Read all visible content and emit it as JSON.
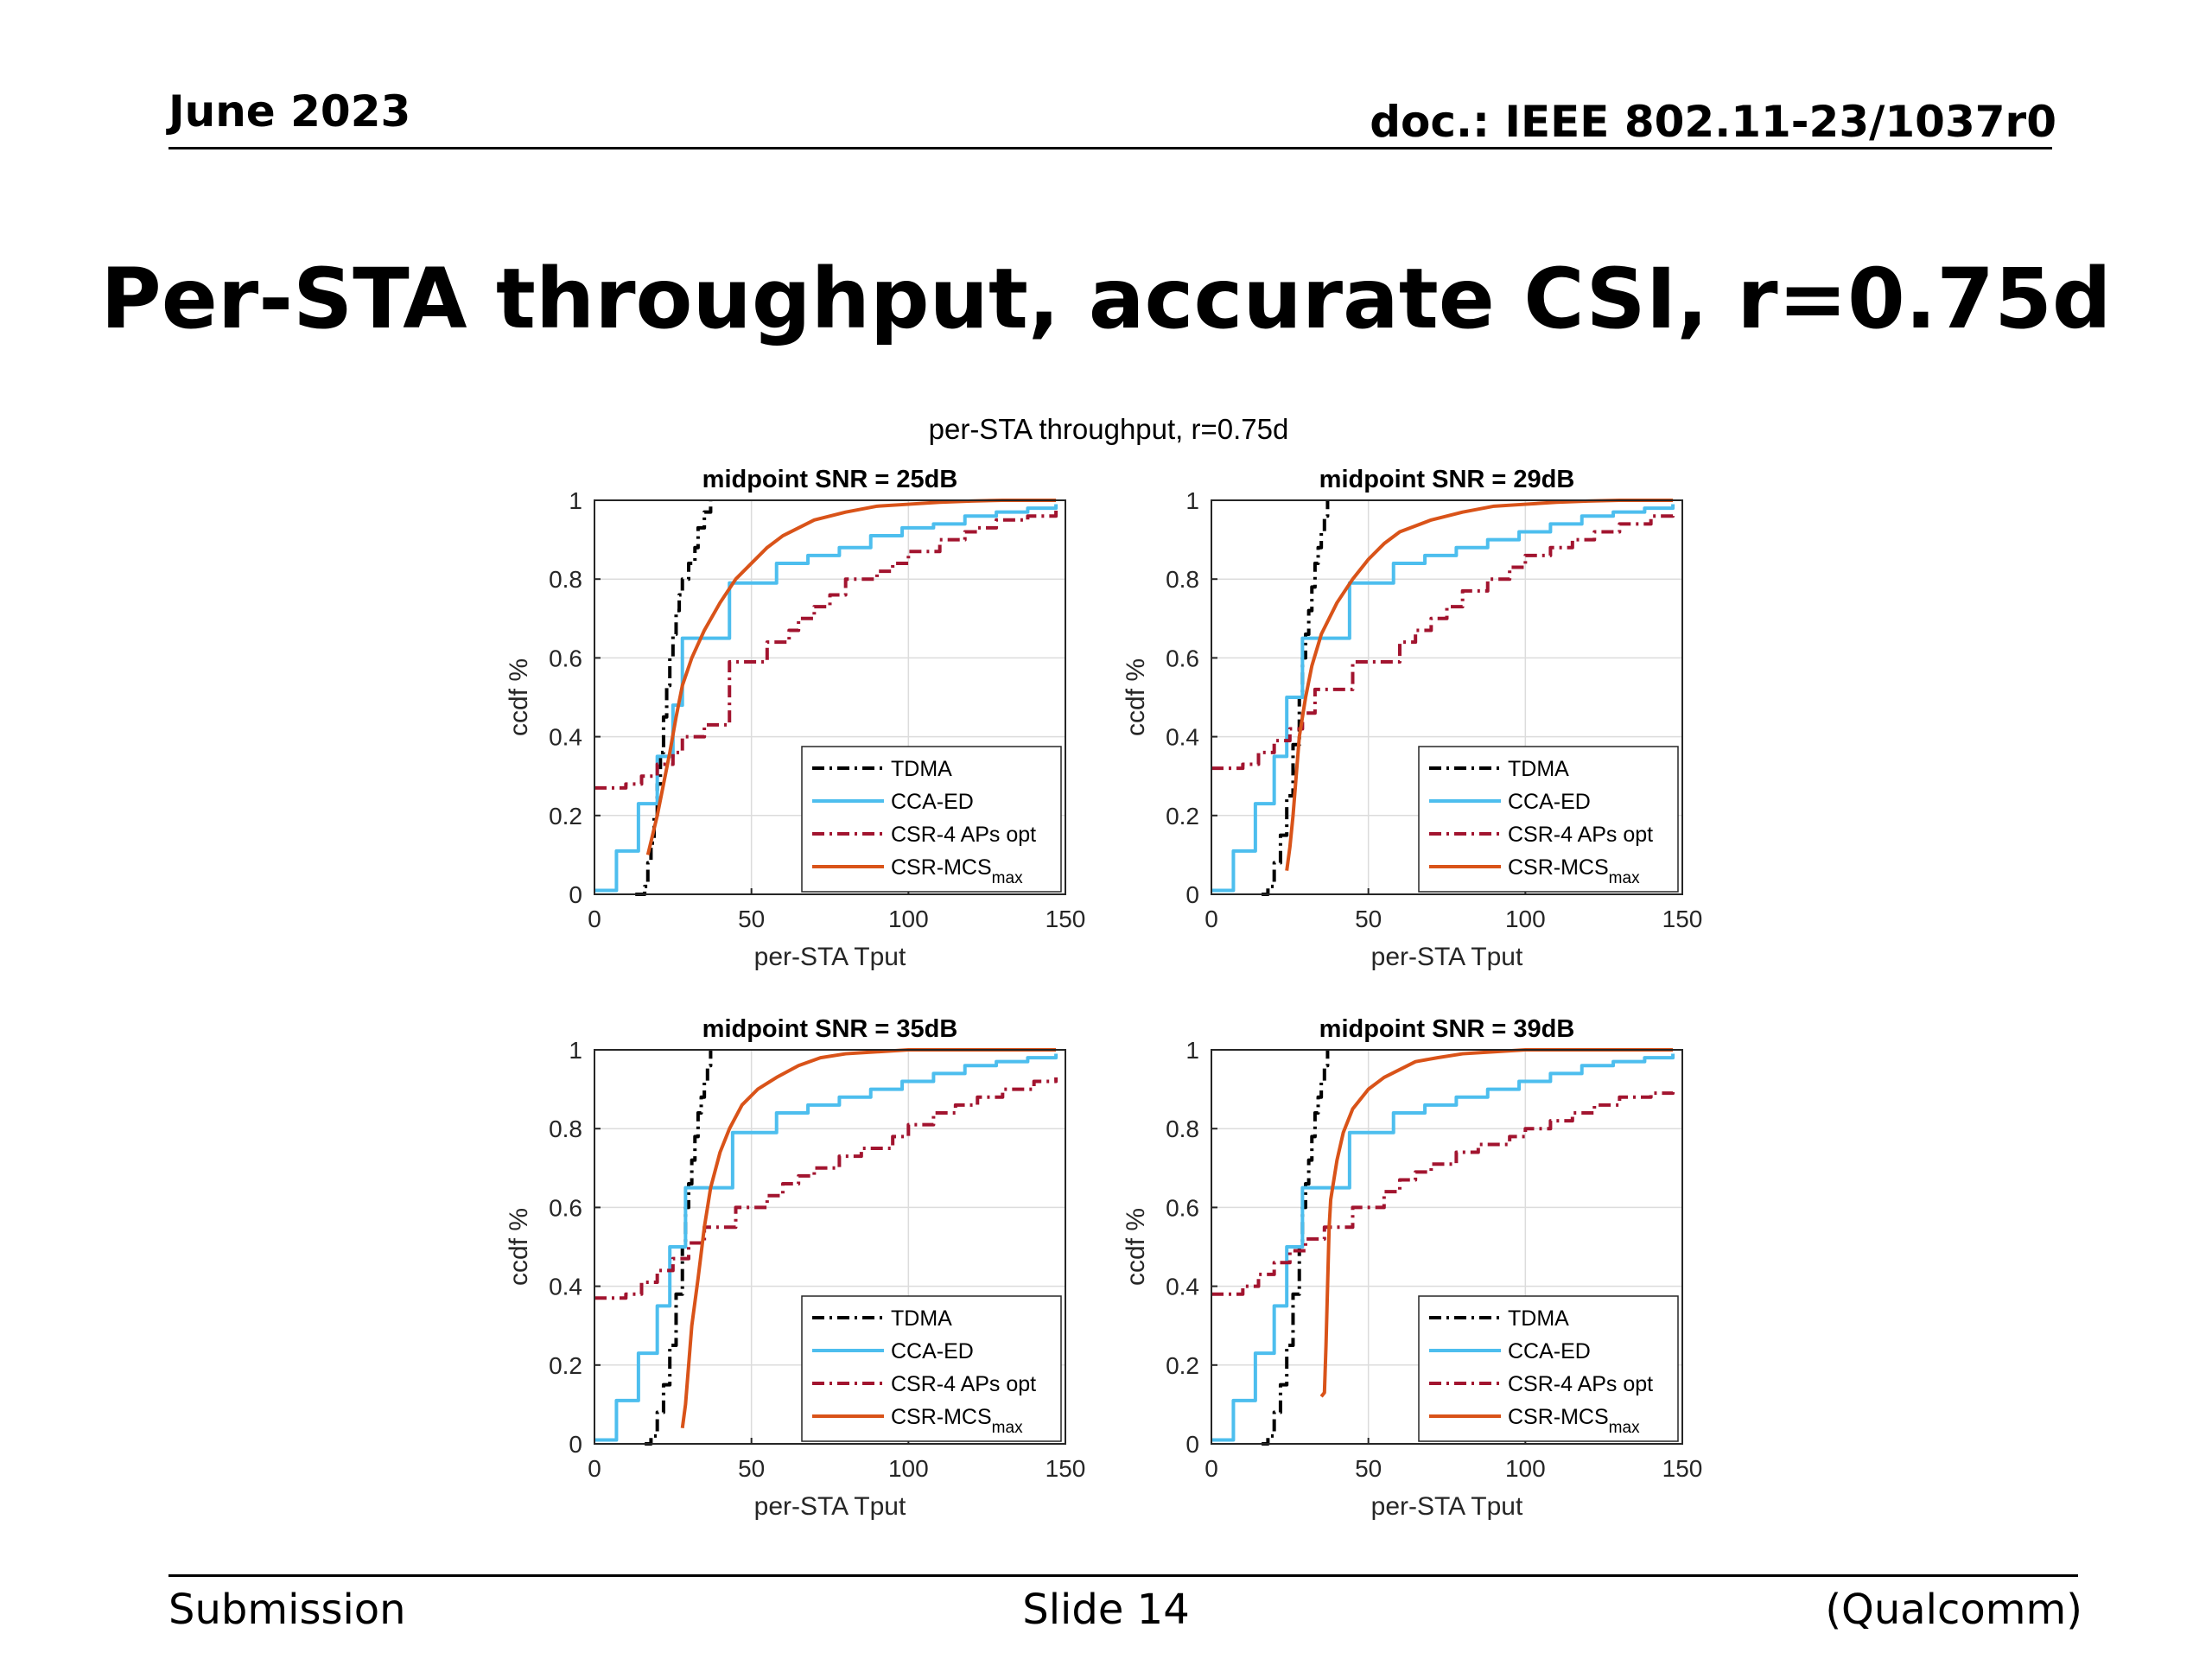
{
  "header": {
    "date": "June 2023",
    "doc": "doc.: IEEE 802.11-23/1037r0"
  },
  "slide_title": "Per-STA throughput, accurate CSI, r=0.75d",
  "footer": {
    "left": "Submission",
    "center": "Slide 14",
    "right": "(Qualcomm)"
  },
  "colors": {
    "TDMA": "#000000",
    "CCA-ED": "#4dbeee",
    "CSR-4 APs opt": "#a2142f",
    "CSR-MCS": "#d95319"
  },
  "chart_data": [
    {
      "type": "line",
      "figure_title": "per-STA throughput, r=0.75d",
      "title": "midpoint SNR = 25dB",
      "xlabel": "per-STA Tput",
      "ylabel": "ccdf %",
      "xlim": [
        0,
        150
      ],
      "ylim": [
        0,
        1
      ],
      "xticks": [
        "0",
        "50",
        "100",
        "150"
      ],
      "yticks": [
        "0",
        "0.2",
        "0.4",
        "0.6",
        "0.8",
        "1"
      ],
      "grid": true,
      "legend_position": "bottom-right",
      "series": [
        {
          "name": "TDMA",
          "style": "dashdot",
          "step": true,
          "x": [
            13,
            16,
            17,
            18,
            19,
            20,
            21,
            22,
            23,
            24,
            25,
            26,
            27,
            28,
            30,
            32,
            33,
            35,
            37
          ],
          "y": [
            0,
            0.02,
            0.08,
            0.13,
            0.2,
            0.28,
            0.36,
            0.45,
            0.53,
            0.6,
            0.66,
            0.72,
            0.76,
            0.8,
            0.84,
            0.88,
            0.93,
            0.97,
            1.0
          ]
        },
        {
          "name": "CCA-ED",
          "style": "solid",
          "step": true,
          "x": [
            0,
            7,
            14,
            20,
            25,
            28,
            43,
            58,
            68,
            78,
            88,
            98,
            108,
            118,
            128,
            138,
            147
          ],
          "y": [
            0.01,
            0.11,
            0.23,
            0.35,
            0.48,
            0.65,
            0.79,
            0.84,
            0.86,
            0.88,
            0.91,
            0.93,
            0.94,
            0.96,
            0.97,
            0.98,
            0.99
          ]
        },
        {
          "name": "CSR-4 APs opt",
          "style": "dashdot",
          "step": true,
          "x": [
            0,
            10,
            15,
            20,
            25,
            28,
            35,
            43,
            55,
            62,
            65,
            70,
            75,
            80,
            90,
            95,
            100,
            110,
            118,
            122,
            128,
            138,
            147
          ],
          "y": [
            0.27,
            0.28,
            0.3,
            0.33,
            0.36,
            0.4,
            0.43,
            0.59,
            0.64,
            0.67,
            0.7,
            0.73,
            0.76,
            0.8,
            0.82,
            0.84,
            0.87,
            0.9,
            0.92,
            0.93,
            0.95,
            0.96,
            0.98
          ]
        },
        {
          "name": "CSR-MCS",
          "name_subscript": "max",
          "style": "solid",
          "step": false,
          "x": [
            17,
            20,
            22,
            24,
            26,
            28,
            31,
            35,
            40,
            45,
            50,
            55,
            60,
            70,
            80,
            90,
            100,
            110,
            120,
            130,
            147
          ],
          "y": [
            0.1,
            0.2,
            0.28,
            0.36,
            0.45,
            0.53,
            0.6,
            0.67,
            0.74,
            0.8,
            0.84,
            0.88,
            0.91,
            0.95,
            0.97,
            0.985,
            0.99,
            0.995,
            0.998,
            1.0,
            1.0
          ]
        }
      ]
    },
    {
      "type": "line",
      "title": "midpoint SNR = 29dB",
      "xlabel": "per-STA Tput",
      "ylabel": "ccdf %",
      "xlim": [
        0,
        150
      ],
      "ylim": [
        0,
        1
      ],
      "xticks": [
        "0",
        "50",
        "100",
        "150"
      ],
      "yticks": [
        "0",
        "0.2",
        "0.4",
        "0.6",
        "0.8",
        "1"
      ],
      "grid": true,
      "legend_position": "bottom-right",
      "series": [
        {
          "name": "TDMA",
          "style": "dashdot",
          "step": true,
          "x": [
            16,
            18,
            20,
            22,
            24,
            26,
            28,
            29,
            30,
            31,
            32,
            33,
            34,
            35,
            36,
            37
          ],
          "y": [
            0,
            0.02,
            0.08,
            0.15,
            0.25,
            0.38,
            0.5,
            0.6,
            0.66,
            0.72,
            0.78,
            0.84,
            0.88,
            0.92,
            0.96,
            1.0
          ]
        },
        {
          "name": "CCA-ED",
          "style": "solid",
          "step": true,
          "x": [
            0,
            7,
            14,
            20,
            24,
            29,
            44,
            58,
            68,
            78,
            88,
            98,
            108,
            118,
            128,
            138,
            147
          ],
          "y": [
            0.01,
            0.11,
            0.23,
            0.35,
            0.5,
            0.65,
            0.79,
            0.84,
            0.86,
            0.88,
            0.9,
            0.92,
            0.94,
            0.96,
            0.97,
            0.98,
            0.99
          ]
        },
        {
          "name": "CSR-4 APs opt",
          "style": "dashdot",
          "step": true,
          "x": [
            0,
            10,
            15,
            20,
            25,
            29,
            33,
            45,
            60,
            65,
            70,
            75,
            80,
            88,
            95,
            100,
            108,
            115,
            122,
            130,
            140,
            147
          ],
          "y": [
            0.32,
            0.33,
            0.36,
            0.39,
            0.42,
            0.46,
            0.52,
            0.59,
            0.64,
            0.67,
            0.7,
            0.73,
            0.77,
            0.8,
            0.83,
            0.86,
            0.88,
            0.9,
            0.92,
            0.94,
            0.96,
            0.97
          ]
        },
        {
          "name": "CSR-MCS",
          "name_subscript": "max",
          "style": "solid",
          "step": false,
          "x": [
            24,
            25,
            26,
            27,
            28,
            30,
            32,
            35,
            40,
            45,
            50,
            55,
            60,
            70,
            80,
            90,
            100,
            110,
            120,
            130,
            147
          ],
          "y": [
            0.06,
            0.12,
            0.2,
            0.3,
            0.4,
            0.5,
            0.58,
            0.66,
            0.74,
            0.8,
            0.85,
            0.89,
            0.92,
            0.95,
            0.97,
            0.985,
            0.99,
            0.995,
            0.998,
            1.0,
            1.0
          ]
        }
      ]
    },
    {
      "type": "line",
      "title": "midpoint SNR = 35dB",
      "xlabel": "per-STA Tput",
      "ylabel": "ccdf %",
      "xlim": [
        0,
        150
      ],
      "ylim": [
        0,
        1
      ],
      "xticks": [
        "0",
        "50",
        "100",
        "150"
      ],
      "yticks": [
        "0",
        "0.2",
        "0.4",
        "0.6",
        "0.8",
        "1"
      ],
      "grid": true,
      "legend_position": "bottom-right",
      "series": [
        {
          "name": "TDMA",
          "style": "dashdot",
          "step": true,
          "x": [
            16,
            18,
            20,
            22,
            24,
            26,
            28,
            29,
            30,
            31,
            32,
            33,
            34,
            35,
            36,
            37
          ],
          "y": [
            0,
            0.02,
            0.08,
            0.15,
            0.25,
            0.38,
            0.5,
            0.6,
            0.66,
            0.72,
            0.78,
            0.84,
            0.88,
            0.92,
            0.96,
            1.0
          ]
        },
        {
          "name": "CCA-ED",
          "style": "solid",
          "step": true,
          "x": [
            0,
            7,
            14,
            20,
            24,
            29,
            44,
            58,
            68,
            78,
            88,
            98,
            108,
            118,
            128,
            138,
            147
          ],
          "y": [
            0.01,
            0.11,
            0.23,
            0.35,
            0.5,
            0.65,
            0.79,
            0.84,
            0.86,
            0.88,
            0.9,
            0.92,
            0.94,
            0.96,
            0.97,
            0.98,
            0.99
          ]
        },
        {
          "name": "CSR-4 APs opt",
          "style": "dashdot",
          "step": true,
          "x": [
            0,
            10,
            15,
            20,
            25,
            30,
            35,
            45,
            55,
            60,
            65,
            70,
            78,
            85,
            95,
            100,
            108,
            115,
            122,
            130,
            140,
            147
          ],
          "y": [
            0.37,
            0.38,
            0.41,
            0.44,
            0.47,
            0.51,
            0.55,
            0.6,
            0.63,
            0.66,
            0.68,
            0.7,
            0.73,
            0.75,
            0.78,
            0.81,
            0.84,
            0.86,
            0.88,
            0.9,
            0.92,
            0.93
          ]
        },
        {
          "name": "CSR-MCS",
          "name_subscript": "max",
          "style": "solid",
          "step": false,
          "x": [
            28,
            29,
            30,
            31,
            33,
            35,
            37,
            40,
            43,
            47,
            52,
            58,
            65,
            72,
            80,
            90,
            100,
            110,
            120,
            130,
            147
          ],
          "y": [
            0.04,
            0.1,
            0.2,
            0.3,
            0.42,
            0.55,
            0.65,
            0.74,
            0.8,
            0.86,
            0.9,
            0.93,
            0.96,
            0.98,
            0.99,
            0.995,
            1.0,
            1.0,
            1.0,
            1.0,
            1.0
          ]
        }
      ]
    },
    {
      "type": "line",
      "title": "midpoint SNR = 39dB",
      "xlabel": "per-STA Tput",
      "ylabel": "ccdf %",
      "xlim": [
        0,
        150
      ],
      "ylim": [
        0,
        1
      ],
      "xticks": [
        "0",
        "50",
        "100",
        "150"
      ],
      "yticks": [
        "0",
        "0.2",
        "0.4",
        "0.6",
        "0.8",
        "1"
      ],
      "grid": true,
      "legend_position": "bottom-right",
      "series": [
        {
          "name": "TDMA",
          "style": "dashdot",
          "step": true,
          "x": [
            16,
            18,
            20,
            22,
            24,
            26,
            28,
            29,
            30,
            31,
            32,
            33,
            34,
            35,
            36,
            37
          ],
          "y": [
            0,
            0.02,
            0.08,
            0.15,
            0.25,
            0.38,
            0.5,
            0.6,
            0.66,
            0.72,
            0.78,
            0.84,
            0.88,
            0.92,
            0.96,
            1.0
          ]
        },
        {
          "name": "CCA-ED",
          "style": "solid",
          "step": true,
          "x": [
            0,
            7,
            14,
            20,
            24,
            29,
            44,
            58,
            68,
            78,
            88,
            98,
            108,
            118,
            128,
            138,
            147
          ],
          "y": [
            0.01,
            0.11,
            0.23,
            0.35,
            0.5,
            0.65,
            0.79,
            0.84,
            0.86,
            0.88,
            0.9,
            0.92,
            0.94,
            0.96,
            0.97,
            0.98,
            0.99
          ]
        },
        {
          "name": "CSR-4 APs opt",
          "style": "dashdot",
          "step": true,
          "x": [
            0,
            10,
            15,
            20,
            25,
            30,
            36,
            45,
            55,
            60,
            65,
            70,
            78,
            85,
            95,
            100,
            108,
            115,
            122,
            130,
            140,
            147
          ],
          "y": [
            0.38,
            0.4,
            0.43,
            0.46,
            0.49,
            0.52,
            0.55,
            0.6,
            0.64,
            0.67,
            0.69,
            0.71,
            0.74,
            0.76,
            0.78,
            0.8,
            0.82,
            0.84,
            0.86,
            0.88,
            0.89,
            0.9
          ]
        },
        {
          "name": "CSR-MCS",
          "name_subscript": "max",
          "style": "solid",
          "step": false,
          "x": [
            35,
            36,
            36.5,
            37,
            37.5,
            38,
            40,
            42,
            45,
            50,
            55,
            60,
            65,
            72,
            80,
            90,
            100,
            110,
            120,
            130,
            147
          ],
          "y": [
            0.12,
            0.13,
            0.25,
            0.4,
            0.55,
            0.62,
            0.72,
            0.79,
            0.85,
            0.9,
            0.93,
            0.95,
            0.97,
            0.98,
            0.99,
            0.995,
            1.0,
            1.0,
            1.0,
            1.0,
            1.0
          ]
        }
      ]
    }
  ]
}
